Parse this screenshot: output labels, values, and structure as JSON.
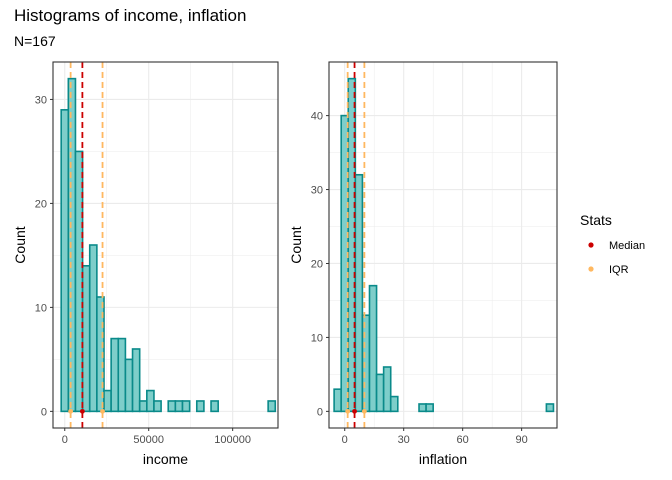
{
  "title": "Histograms of income, inflation",
  "subtitle": "N=167",
  "colors": {
    "bar_fill": "#7ececa",
    "bar_stroke": "#0a8a8a",
    "median": "#cc0000",
    "iqr": "#ffb860",
    "grid": "#ebebeb",
    "panel_border": "#333333"
  },
  "legend": {
    "title": "Stats",
    "items": [
      {
        "label": "Median",
        "color": "#cc0000"
      },
      {
        "label": "IQR",
        "color": "#ffb860"
      }
    ]
  },
  "chart_data": [
    {
      "type": "bar",
      "xlabel": "income",
      "ylabel": "Count",
      "xlim": [
        -7000,
        127000
      ],
      "ylim": [
        -1.6,
        33.6
      ],
      "x_ticks": [
        0,
        50000,
        100000
      ],
      "x_tick_labels": [
        "0",
        "50000",
        "100000"
      ],
      "y_ticks": [
        0,
        10,
        20,
        30
      ],
      "bin_width": 4250,
      "bin_centers": [
        0,
        4250,
        8500,
        12750,
        17000,
        21250,
        25500,
        29750,
        34000,
        38250,
        42500,
        46750,
        51000,
        55250,
        59500,
        63750,
        68000,
        72250,
        76500,
        80750,
        85000,
        89250,
        93500,
        97750,
        102000,
        106250,
        110500,
        114750,
        119000,
        123250
      ],
      "values": [
        29,
        32,
        25,
        14,
        16,
        11,
        2,
        7,
        7,
        5,
        6,
        1,
        2,
        1,
        0,
        1,
        1,
        1,
        0,
        1,
        0,
        1,
        0,
        0,
        0,
        0,
        0,
        0,
        0,
        1
      ],
      "median": 10500,
      "iqr": [
        3500,
        22500
      ],
      "grid": true
    },
    {
      "type": "bar",
      "xlabel": "inflation",
      "ylabel": "Count",
      "xlim": [
        -8,
        108
      ],
      "ylim": [
        -2.25,
        47.25
      ],
      "x_ticks": [
        0,
        30,
        60,
        90
      ],
      "x_tick_labels": [
        "0",
        "30",
        "60",
        "90"
      ],
      "y_ticks": [
        0,
        10,
        20,
        30,
        40
      ],
      "bin_width": 3.6,
      "bin_centers": [
        -3.6,
        0,
        3.6,
        7.2,
        10.8,
        14.4,
        18,
        21.6,
        25.2,
        28.8,
        32.4,
        36,
        39.6,
        43.2,
        46.8,
        50.4,
        54,
        57.6,
        61.2,
        64.8,
        68.4,
        72,
        75.6,
        79.2,
        82.8,
        86.4,
        90,
        93.6,
        97.2,
        100.8,
        104.4
      ],
      "values": [
        3,
        40,
        45,
        32,
        13,
        17,
        5,
        6,
        2,
        0,
        0,
        0,
        1,
        1,
        0,
        0,
        0,
        0,
        0,
        0,
        0,
        0,
        0,
        0,
        0,
        0,
        0,
        0,
        0,
        0,
        1
      ],
      "median": 5,
      "iqr": [
        1.5,
        10
      ],
      "grid": true
    }
  ]
}
